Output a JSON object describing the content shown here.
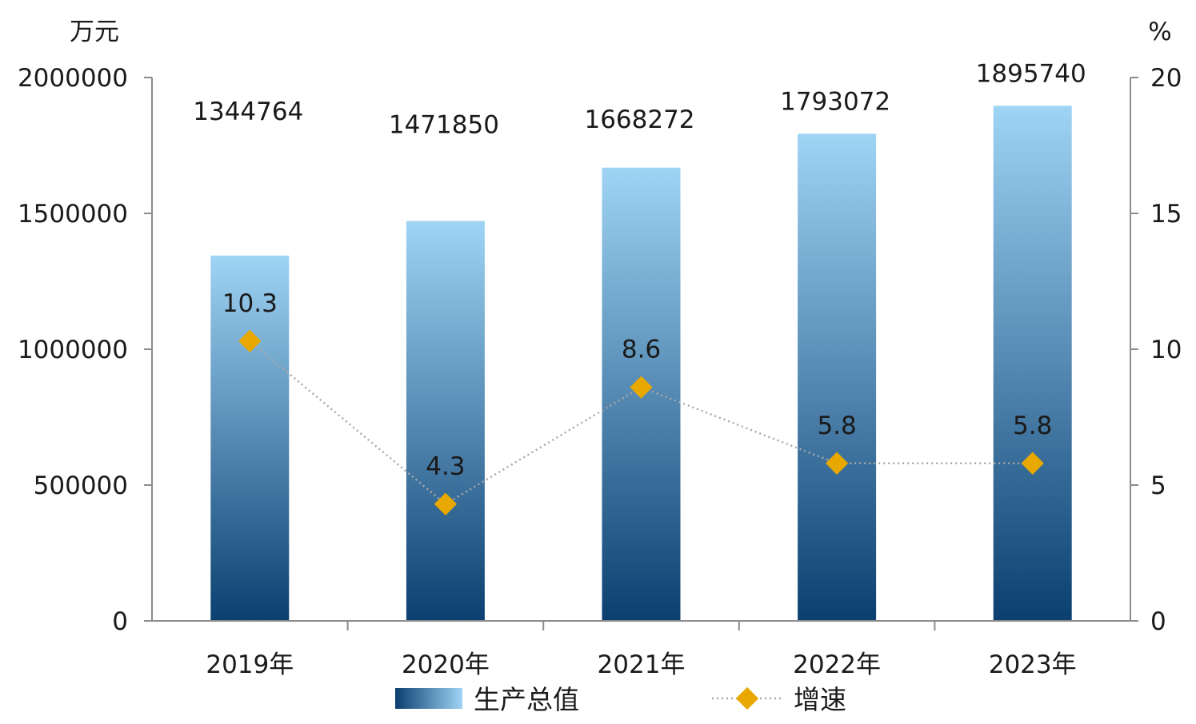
{
  "chart_data": {
    "type": "bar",
    "categories": [
      "2019年",
      "2020年",
      "2021年",
      "2022年",
      "2023年"
    ],
    "series": [
      {
        "name": "生产总值",
        "type": "bar",
        "axis": "left",
        "values": [
          1344764,
          1471850,
          1668272,
          1793072,
          1895740
        ],
        "color_top": "#9fd4f5",
        "color_bottom": "#0b3f70"
      },
      {
        "name": "增速",
        "type": "line",
        "axis": "right",
        "values": [
          10.3,
          4.3,
          8.6,
          5.8,
          5.8
        ],
        "color": "#e8a800",
        "line_style": "dotted",
        "line_color": "#a8a8a8",
        "marker": "diamond"
      }
    ],
    "y_left": {
      "unit": "万元",
      "range": [
        0,
        2000000
      ],
      "ticks": [
        "0",
        "500000",
        "1000000",
        "1500000",
        "2000000"
      ]
    },
    "y_right": {
      "unit": "%",
      "range": [
        0,
        20
      ],
      "ticks": [
        "0",
        "5",
        "10",
        "15",
        "20"
      ]
    },
    "legend": {
      "placement": "bottom",
      "items": [
        "生产总值",
        "增速"
      ]
    },
    "grid": false
  }
}
